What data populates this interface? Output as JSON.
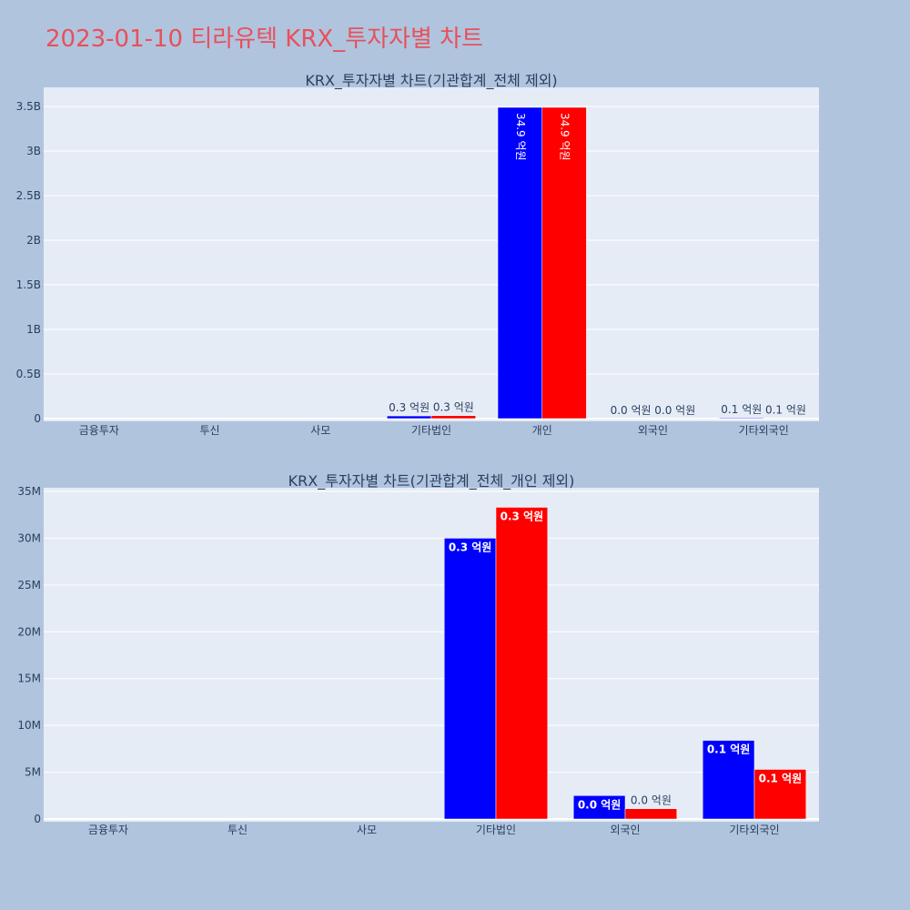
{
  "page_title": "2023-01-10 티라유텍 KRX_투자자별 차트",
  "colors": {
    "series_a": "#0000ff",
    "series_b": "#ff0000",
    "plot_bg": "#e5ecf6",
    "page_bg": "#b0c4de",
    "title": "#e8505b"
  },
  "chart_data": [
    {
      "type": "bar",
      "title": "KRX_투자자별 차트(기관합계_전체 제외)",
      "categories": [
        "금융투자",
        "투신",
        "사모",
        "기타법인",
        "개인",
        "외국인",
        "기타외국인"
      ],
      "series": [
        {
          "values": [
            0,
            0,
            0,
            30000000,
            3490000000,
            2500000,
            8400000
          ],
          "labels": [
            "",
            "",
            "",
            "0.3 억원",
            "34.9 억원",
            "0.0 억원",
            "0.1 억원"
          ]
        },
        {
          "values": [
            0,
            0,
            0,
            33300000,
            3490000000,
            1100000,
            5300000
          ],
          "labels": [
            "",
            "",
            "",
            "0.3 억원",
            "34.9 억원",
            "0.0 억원",
            "0.1 억원"
          ]
        }
      ],
      "ylim": [
        0,
        3500000000
      ],
      "yticks": [
        0,
        500000000,
        1000000000,
        1500000000,
        2000000000,
        2500000000,
        3000000000,
        3500000000
      ],
      "ytick_labels": [
        "0",
        "0.5B",
        "1B",
        "1.5B",
        "2B",
        "2.5B",
        "3B",
        "3.5B"
      ],
      "xlabel": "",
      "ylabel": "",
      "grid": true
    },
    {
      "type": "bar",
      "title": "KRX_투자자별 차트(기관합계_전체_개인 제외)",
      "categories": [
        "금융투자",
        "투신",
        "사모",
        "기타법인",
        "외국인",
        "기타외국인"
      ],
      "series": [
        {
          "values": [
            0,
            0,
            0,
            30000000,
            2500000,
            8400000
          ],
          "labels": [
            "",
            "",
            "",
            "0.3 억원",
            "0.0 억원",
            "0.1 억원"
          ]
        },
        {
          "values": [
            0,
            0,
            0,
            33300000,
            1100000,
            5300000
          ],
          "labels": [
            "",
            "",
            "",
            "0.3 억원",
            "0.0 억원",
            "0.1 억원"
          ]
        }
      ],
      "ylim": [
        0,
        35000000
      ],
      "yticks": [
        0,
        5000000,
        10000000,
        15000000,
        20000000,
        25000000,
        30000000,
        35000000
      ],
      "ytick_labels": [
        "0",
        "5M",
        "10M",
        "15M",
        "20M",
        "25M",
        "30M",
        "35M"
      ],
      "xlabel": "",
      "ylabel": "",
      "grid": true
    }
  ]
}
